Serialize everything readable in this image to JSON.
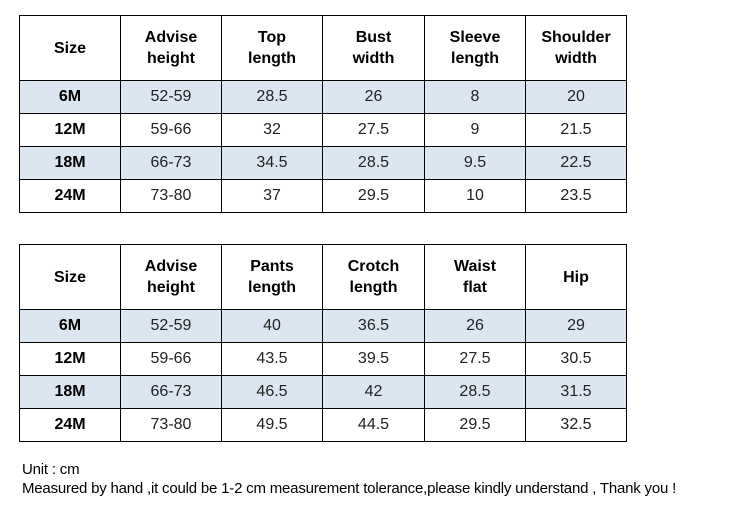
{
  "top_table": {
    "headers": [
      "Size",
      "Advise\nheight",
      "Top\nlength",
      "Bust\nwidth",
      "Sleeve\nlength",
      "Shoulder\nwidth"
    ],
    "rows": [
      [
        "6M",
        "52-59",
        "28.5",
        "26",
        "8",
        "20"
      ],
      [
        "12M",
        "59-66",
        "32",
        "27.5",
        "9",
        "21.5"
      ],
      [
        "18M",
        "66-73",
        "34.5",
        "28.5",
        "9.5",
        "22.5"
      ],
      [
        "24M",
        "73-80",
        "37",
        "29.5",
        "10",
        "23.5"
      ]
    ]
  },
  "bottom_table": {
    "headers": [
      "Size",
      "Advise\nheight",
      "Pants\nlength",
      "Crotch\nlength",
      "Waist\nflat",
      "Hip"
    ],
    "rows": [
      [
        "6M",
        "52-59",
        "40",
        "36.5",
        "26",
        "29"
      ],
      [
        "12M",
        "59-66",
        "43.5",
        "39.5",
        "27.5",
        "30.5"
      ],
      [
        "18M",
        "66-73",
        "46.5",
        "42",
        "28.5",
        "31.5"
      ],
      [
        "24M",
        "73-80",
        "49.5",
        "44.5",
        "29.5",
        "32.5"
      ]
    ]
  },
  "notes": {
    "unit": "Unit : cm",
    "tolerance": "Measured by hand ,it could be 1-2 cm measurement tolerance,please kindly understand , Thank you !"
  },
  "colors": {
    "shaded_row": "#dce6f1",
    "border": "#000000"
  }
}
